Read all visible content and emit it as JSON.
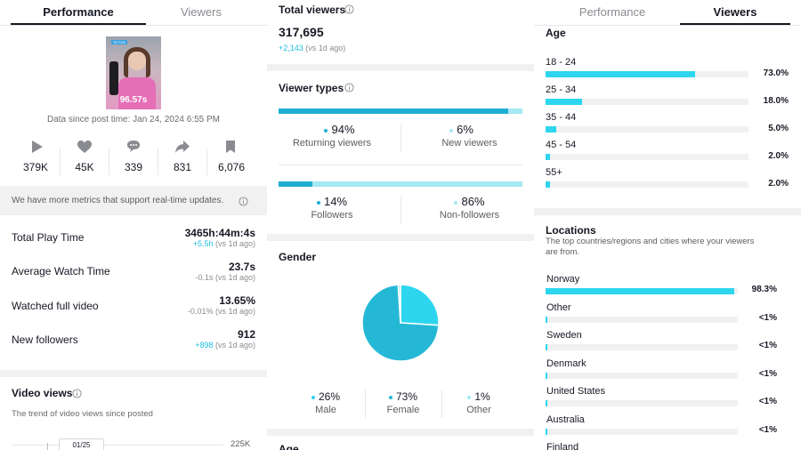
{
  "col1": {
    "tabs": [
      {
        "label": "Performance"
      },
      {
        "label": "Viewers"
      }
    ],
    "thumbnail": {
      "duration": "96.57s",
      "sticker": "TIKTOK"
    },
    "data_since": "Data since post time: Jan 24, 2024 6:55 PM",
    "stats": [
      {
        "icon": "play-icon",
        "value": "379K"
      },
      {
        "icon": "heart-icon",
        "value": "45K"
      },
      {
        "icon": "comment-icon",
        "value": "339"
      },
      {
        "icon": "share-icon",
        "value": "831"
      },
      {
        "icon": "bookmark-icon",
        "value": "6,076"
      }
    ],
    "notice": "We have more metrics that support real-time updates.",
    "metrics": [
      {
        "label": "Total Play Time",
        "value": "3465h:44m:4s",
        "delta": "+5.5h",
        "delta_suffix": " (vs 1d ago)"
      },
      {
        "label": "Average Watch Time",
        "value": "23.7s",
        "delta": "-0.1s",
        "delta_suffix": " (vs 1d ago)"
      },
      {
        "label": "Watched full video",
        "value": "13.65%",
        "delta": "-0.01%",
        "delta_suffix": " (vs 1d ago)"
      },
      {
        "label": "New followers",
        "value": "912",
        "delta": "+898",
        "delta_suffix": " (vs 1d ago)"
      }
    ],
    "video_views": {
      "title": "Video views",
      "subtitle": "The trend of video views since posted",
      "axis_top": "225K",
      "tooltip": "01/25"
    }
  },
  "col2": {
    "total_viewers": {
      "title": "Total viewers",
      "value": "317,695",
      "delta": "+2,143",
      "delta_suffix": " (vs 1d ago)"
    },
    "viewer_types": {
      "title": "Viewer types",
      "groups": [
        {
          "fraction": 0.94,
          "left": {
            "pct": "94%",
            "label": "Returning viewers"
          },
          "right": {
            "pct": "6%",
            "label": "New viewers"
          }
        },
        {
          "fraction": 0.14,
          "left": {
            "pct": "14%",
            "label": "Followers"
          },
          "right": {
            "pct": "86%",
            "label": "Non-followers"
          }
        }
      ]
    },
    "gender": {
      "title": "Gender",
      "items": [
        {
          "pct": "26%",
          "label": "Male",
          "value": 26,
          "color": "#2dd6ee"
        },
        {
          "pct": "73%",
          "label": "Female",
          "value": 73,
          "color": "#25b8d6"
        },
        {
          "pct": "1%",
          "label": "Other",
          "value": 1,
          "color": "#9fe7f4"
        }
      ]
    },
    "age_title": "Age"
  },
  "col3": {
    "tabs": [
      {
        "label": "Performance"
      },
      {
        "label": "Viewers"
      }
    ],
    "age": {
      "title": "Age",
      "items": [
        {
          "label": "18 - 24",
          "pct": "73.0%",
          "fraction": 0.73
        },
        {
          "label": "25 - 34",
          "pct": "18.0%",
          "fraction": 0.18
        },
        {
          "label": "35 - 44",
          "pct": "5.0%",
          "fraction": 0.05
        },
        {
          "label": "45 - 54",
          "pct": "2.0%",
          "fraction": 0.02
        },
        {
          "label": "55+",
          "pct": "2.0%",
          "fraction": 0.02
        }
      ]
    },
    "locations": {
      "title": "Locations",
      "subtitle_line1": "The top countries/regions and cities where your viewers",
      "subtitle_line2": "are from.",
      "items": [
        {
          "label": "Norway",
          "pct": "98.3%",
          "fraction": 0.983
        },
        {
          "label": "Other",
          "pct": "<1%",
          "fraction": 0.004
        },
        {
          "label": "Sweden",
          "pct": "<1%",
          "fraction": 0.004
        },
        {
          "label": "Denmark",
          "pct": "<1%",
          "fraction": 0.004
        },
        {
          "label": "United States",
          "pct": "<1%",
          "fraction": 0.004
        },
        {
          "label": "Australia",
          "pct": "<1%",
          "fraction": 0.004
        },
        {
          "label": "Finland",
          "pct": "",
          "fraction": 0
        }
      ]
    }
  }
}
